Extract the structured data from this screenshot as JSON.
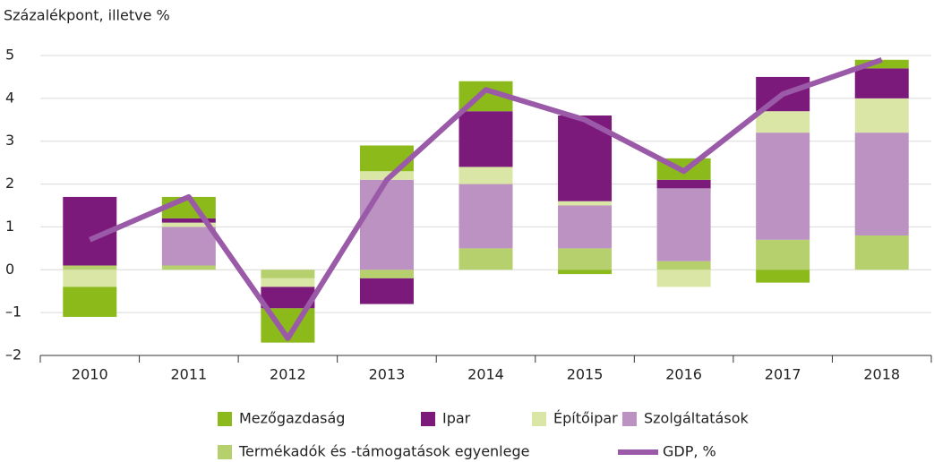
{
  "chart_data": {
    "type": "bar",
    "stacked": true,
    "y_label": "Százalékpont, illetve %",
    "categories": [
      "2010",
      "2011",
      "2012",
      "2013",
      "2014",
      "2015",
      "2016",
      "2017",
      "2018"
    ],
    "series": [
      {
        "name": "Mezőgazdaság",
        "color": "#8cba1b",
        "values": [
          -0.7,
          0.5,
          -0.8,
          0.6,
          0.7,
          -0.1,
          0.5,
          -0.3,
          0.2
        ]
      },
      {
        "name": "Ipar",
        "color": "#7c1a7c",
        "values": [
          1.6,
          0.1,
          -0.5,
          -0.6,
          1.3,
          2.0,
          0.2,
          0.8,
          0.7
        ]
      },
      {
        "name": "Építőipar",
        "color": "#d9e6a6",
        "values": [
          -0.4,
          0.1,
          -0.2,
          0.2,
          0.4,
          0.1,
          -0.4,
          0.5,
          0.8
        ]
      },
      {
        "name": "Szolgáltatások",
        "color": "#bb92c1",
        "values": [
          0,
          0.9,
          0,
          2.1,
          1.5,
          1.0,
          1.7,
          2.5,
          2.4
        ]
      },
      {
        "name": "Termékadók és -támogatások egyenlege",
        "color": "#b5d06c",
        "values": [
          0.1,
          0.1,
          -0.2,
          -0.2,
          0.5,
          0.5,
          0.2,
          0.7,
          0.8
        ]
      },
      {
        "name": "GDP, %",
        "type": "line",
        "color": "#9a5aa8",
        "values": [
          0.7,
          1.7,
          -1.6,
          2.1,
          4.2,
          3.5,
          2.3,
          4.1,
          4.9
        ]
      }
    ],
    "stack_order": [
      4,
      3,
      2,
      1,
      0
    ],
    "ylim": [
      -2,
      5
    ],
    "yticks": [
      {
        "value": -2,
        "label": "–2"
      },
      {
        "value": -1,
        "label": "–1"
      },
      0,
      1,
      2,
      3,
      4,
      5
    ],
    "grid": true
  }
}
